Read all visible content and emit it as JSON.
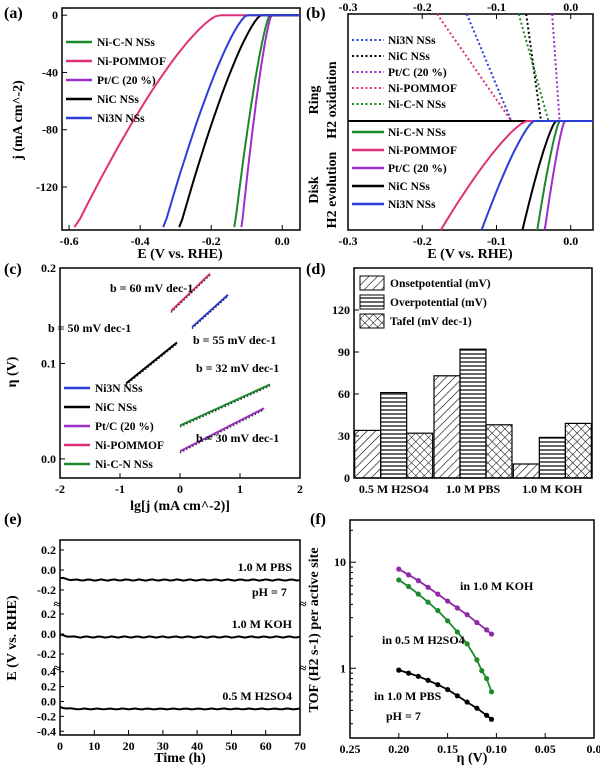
{
  "panels": {
    "a": {
      "label": "(a)",
      "chart_data": {
        "type": "line",
        "xlabel": "E (V vs. RHE)",
        "ylabel": "j (mA cm^-2)",
        "xlim": [
          -0.62,
          0.05
        ],
        "ylim": [
          -150,
          5
        ],
        "xticks": [
          "-0.6",
          "-0.4",
          "-0.2",
          "0.0"
        ],
        "yticks": [
          "0",
          "-40",
          "-80",
          "-120"
        ],
        "series": [
          {
            "name": "Ni-C-N NSs",
            "color": "#1a8a2a",
            "onset": -0.035,
            "end_x": -0.135
          },
          {
            "name": "Ni-POMMOF",
            "color": "#e0307a",
            "onset": -0.18,
            "end_x": -0.585
          },
          {
            "name": "Pt/C (20 %)",
            "color": "#9b2fc9",
            "onset": -0.03,
            "end_x": -0.115
          },
          {
            "name": "NiC NSs",
            "color": "#000000",
            "onset": -0.06,
            "end_x": -0.29
          },
          {
            "name": "Ni3N NSs",
            "color": "#2a3fd6",
            "onset": -0.1,
            "end_x": -0.335
          }
        ]
      }
    },
    "b": {
      "label": "(b)",
      "ring_label": "Ring",
      "ring_sub": "H2 oxidation",
      "disk_label": "Disk",
      "disk_sub": "H2 evolution",
      "chart_data": {
        "type": "line",
        "xlabel": "E (V vs. RHE)",
        "xlim": [
          -0.3,
          0.03
        ],
        "xticks": [
          "-0.3",
          "-0.2",
          "-0.1",
          "0.0"
        ],
        "ring_series": [
          {
            "name": "Ni3N NSs",
            "color": "#2a3fd6",
            "x_top": -0.14,
            "x_base": -0.08
          },
          {
            "name": "NiC NSs",
            "color": "#000000",
            "x_top": -0.06,
            "x_base": -0.04
          },
          {
            "name": "Pt/C (20 %)",
            "color": "#9b2fc9",
            "x_top": -0.025,
            "x_base": -0.015
          },
          {
            "name": "Ni-POMMOF",
            "color": "#e0307a",
            "x_top": -0.18,
            "x_base": -0.08
          },
          {
            "name": "Ni-C-N NSs",
            "color": "#1a8a2a",
            "x_top": -0.07,
            "x_base": -0.03
          }
        ],
        "disk_series": [
          {
            "name": "Ni-C-N NSs",
            "color": "#1a8a2a",
            "x_bottom": -0.045,
            "x_onset": -0.015
          },
          {
            "name": "Ni-POMMOF",
            "color": "#e0307a",
            "x_bottom": -0.175,
            "x_onset": -0.06
          },
          {
            "name": "Pt/C (20 %)",
            "color": "#9b2fc9",
            "x_bottom": -0.035,
            "x_onset": -0.008
          },
          {
            "name": "NiC NSs",
            "color": "#000000",
            "x_bottom": -0.065,
            "x_onset": -0.02
          },
          {
            "name": "Ni3N NSs",
            "color": "#2a3fd6",
            "x_bottom": -0.12,
            "x_onset": -0.05
          }
        ]
      }
    },
    "c": {
      "label": "(c)",
      "chart_data": {
        "type": "line",
        "xlabel": "lg[j (mA cm^-2)]",
        "ylabel": "η (V)",
        "xlim": [
          -2,
          2
        ],
        "ylim": [
          -0.02,
          0.2
        ],
        "xticks": [
          "-2",
          "-1",
          "0",
          "1",
          "2"
        ],
        "yticks": [
          "0.0",
          "0.1",
          "0.2"
        ],
        "series": [
          {
            "name": "Ni3N NSs",
            "color": "#2a3fd6",
            "tafel": "b = 55 mV dec-1",
            "x": [
              0.2,
              0.8
            ],
            "y": [
              0.138,
              0.172
            ]
          },
          {
            "name": "NiC  NSs",
            "color": "#000000",
            "tafel": "b = 50 mV dec-1",
            "x": [
              -0.9,
              -0.05
            ],
            "y": [
              0.079,
              0.122
            ]
          },
          {
            "name": "Pt/C (20 %)",
            "color": "#9b2fc9",
            "tafel": "b = 30 mV dec-1",
            "x": [
              0.0,
              1.4
            ],
            "y": [
              0.008,
              0.053
            ]
          },
          {
            "name": "Ni-POMMOF",
            "color": "#e0307a",
            "tafel": "b = 60 mV dec-1",
            "x": [
              -0.15,
              0.5
            ],
            "y": [
              0.155,
              0.194
            ]
          },
          {
            "name": "Ni-C-N NSs",
            "color": "#1a8a2a",
            "tafel": "b = 32 mV dec-1",
            "x": [
              0.0,
              1.5
            ],
            "y": [
              0.035,
              0.078
            ]
          }
        ]
      }
    },
    "d": {
      "label": "(d)",
      "chart_data": {
        "type": "bar",
        "categories": [
          "0.5 M H2SO4",
          "1.0 M PBS",
          "1.0 M KOH"
        ],
        "ylim": [
          0,
          150
        ],
        "yticks": [
          "0",
          "30",
          "60",
          "90",
          "120"
        ],
        "series": [
          {
            "name": "Onsetpotential (mV)",
            "values": [
              34,
              73,
              10
            ]
          },
          {
            "name": "Overpotential (mV)",
            "values": [
              61,
              92,
              29
            ]
          },
          {
            "name": "Tafel (mV dec-1)",
            "values": [
              32,
              38,
              39
            ]
          }
        ]
      }
    },
    "e": {
      "label": "(e)",
      "chart_data": {
        "type": "line",
        "xlabel": "Time (h)",
        "ylabel": "E (V vs. RHE)",
        "xlim": [
          0,
          70
        ],
        "xticks": [
          "0",
          "10",
          "20",
          "30",
          "40",
          "50",
          "60",
          "70"
        ],
        "sections": [
          {
            "name": "1.0 M PBS",
            "note": "pH = 7",
            "yticks": [
              "0.2",
              "0.0",
              "-0.2"
            ],
            "ylim": [
              -0.3,
              0.3
            ],
            "value": -0.1
          },
          {
            "name": "1.0 M KOH",
            "yticks": [
              "0.2",
              "0.0",
              "-0.2"
            ],
            "ylim": [
              -0.3,
              0.3
            ],
            "value": -0.03
          },
          {
            "name": "0.5 M H2SO4",
            "yticks": [
              "0.4",
              "0.2",
              "0.0",
              "-0.2",
              "-0.4"
            ],
            "ylim": [
              -0.45,
              0.45
            ],
            "value": -0.1
          }
        ]
      }
    },
    "f": {
      "label": "(f)",
      "chart_data": {
        "type": "line",
        "xlabel": "η (V)",
        "ylabel": "TOF (H2 s-1) per active site",
        "xlim": [
          0.25,
          0.0
        ],
        "yscale": "log",
        "ylim": [
          0.22,
          25
        ],
        "xticks": [
          "0.25",
          "0.20",
          "0.15",
          "0.10",
          "0.05",
          "0.0"
        ],
        "yticks": [
          "1",
          "10"
        ],
        "series": [
          {
            "name": "in 1.0 M KOH",
            "color": "#8e2aa6",
            "x": [
              0.2,
              0.19,
              0.18,
              0.17,
              0.16,
              0.15,
              0.14,
              0.13,
              0.12,
              0.11,
              0.105
            ],
            "y": [
              8.6,
              7.6,
              6.7,
              5.8,
              5.0,
              4.3,
              3.7,
              3.2,
              2.7,
              2.3,
              2.1
            ]
          },
          {
            "name": "in 0.5 M H2SO4",
            "color": "#1a8a2a",
            "x": [
              0.2,
              0.19,
              0.18,
              0.17,
              0.16,
              0.15,
              0.14,
              0.13,
              0.12,
              0.115,
              0.11,
              0.105
            ],
            "y": [
              6.8,
              5.9,
              5.0,
              4.2,
              3.5,
              2.8,
              2.2,
              1.7,
              1.2,
              0.95,
              0.8,
              0.6
            ]
          },
          {
            "name": "in 1.0 M PBS",
            "note": "pH = 7",
            "color": "#000000",
            "x": [
              0.2,
              0.19,
              0.18,
              0.17,
              0.16,
              0.15,
              0.14,
              0.13,
              0.12,
              0.11,
              0.105
            ],
            "y": [
              0.96,
              0.9,
              0.84,
              0.77,
              0.7,
              0.63,
              0.55,
              0.48,
              0.42,
              0.36,
              0.33
            ]
          }
        ]
      }
    }
  }
}
